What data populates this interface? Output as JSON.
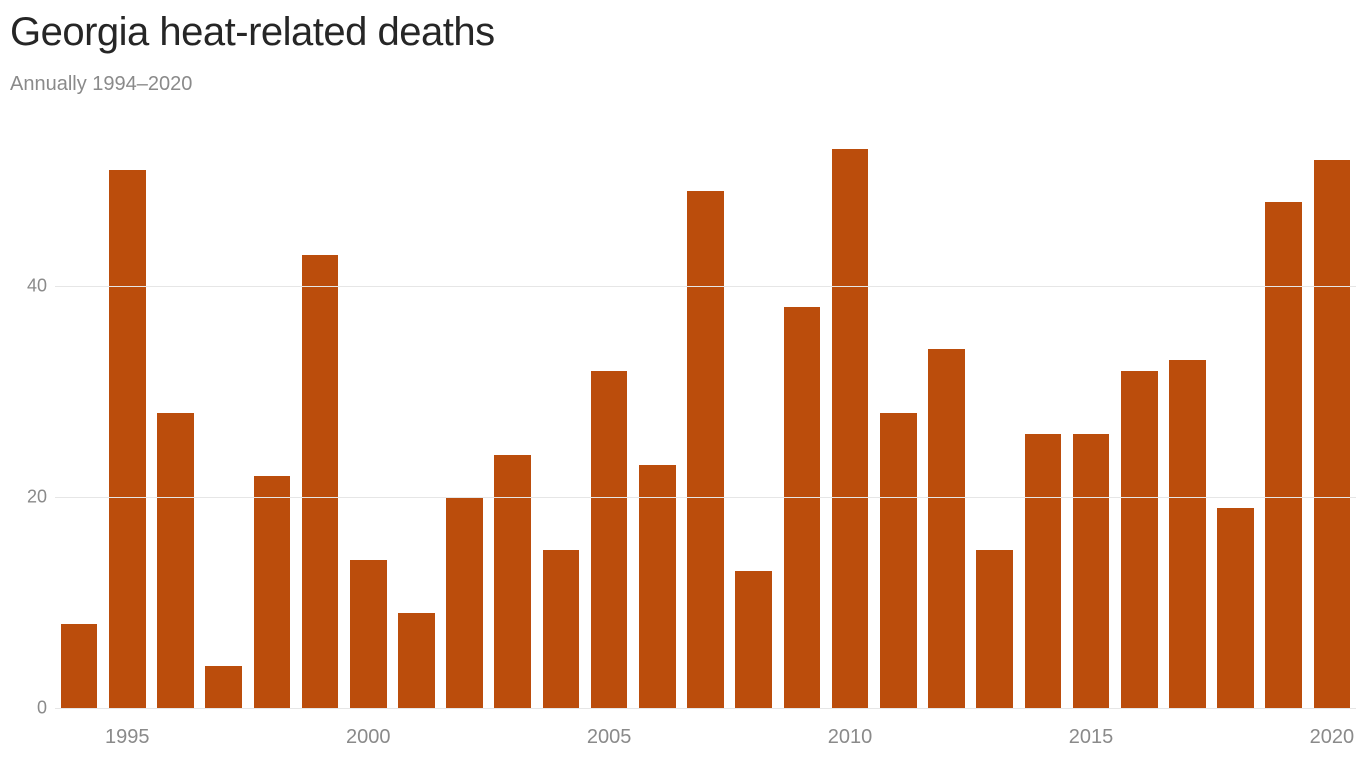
{
  "chart": {
    "type": "bar",
    "title": "Georgia heat-related deaths",
    "subtitle": "Annually 1994–2020",
    "title_fontsize": 40,
    "title_color": "#262626",
    "subtitle_fontsize": 20,
    "subtitle_color": "#8a8a8a",
    "background_color": "#ffffff",
    "bar_color": "#bb4d0c",
    "grid_color": "#e6e6e6",
    "axis_label_color": "#8a8a8a",
    "axis_label_fontsize": 18,
    "bar_width_ratio": 0.76,
    "y": {
      "min": 0,
      "max": 55,
      "ticks": [
        0,
        20,
        40
      ],
      "tick_labels": [
        "0",
        "20",
        "40"
      ]
    },
    "x": {
      "years": [
        1994,
        1995,
        1996,
        1997,
        1998,
        1999,
        2000,
        2001,
        2002,
        2003,
        2004,
        2005,
        2006,
        2007,
        2008,
        2009,
        2010,
        2011,
        2012,
        2013,
        2014,
        2015,
        2016,
        2017,
        2018,
        2019,
        2020
      ],
      "tick_years": [
        1995,
        2000,
        2005,
        2010,
        2015,
        2020
      ],
      "tick_labels": [
        "1995",
        "2000",
        "2005",
        "2010",
        "2015",
        "2020"
      ]
    },
    "values": [
      8,
      51,
      28,
      4,
      22,
      43,
      14,
      9,
      20,
      24,
      15,
      32,
      23,
      49,
      13,
      38,
      53,
      28,
      34,
      15,
      26,
      26,
      32,
      33,
      19,
      48,
      52
    ]
  }
}
